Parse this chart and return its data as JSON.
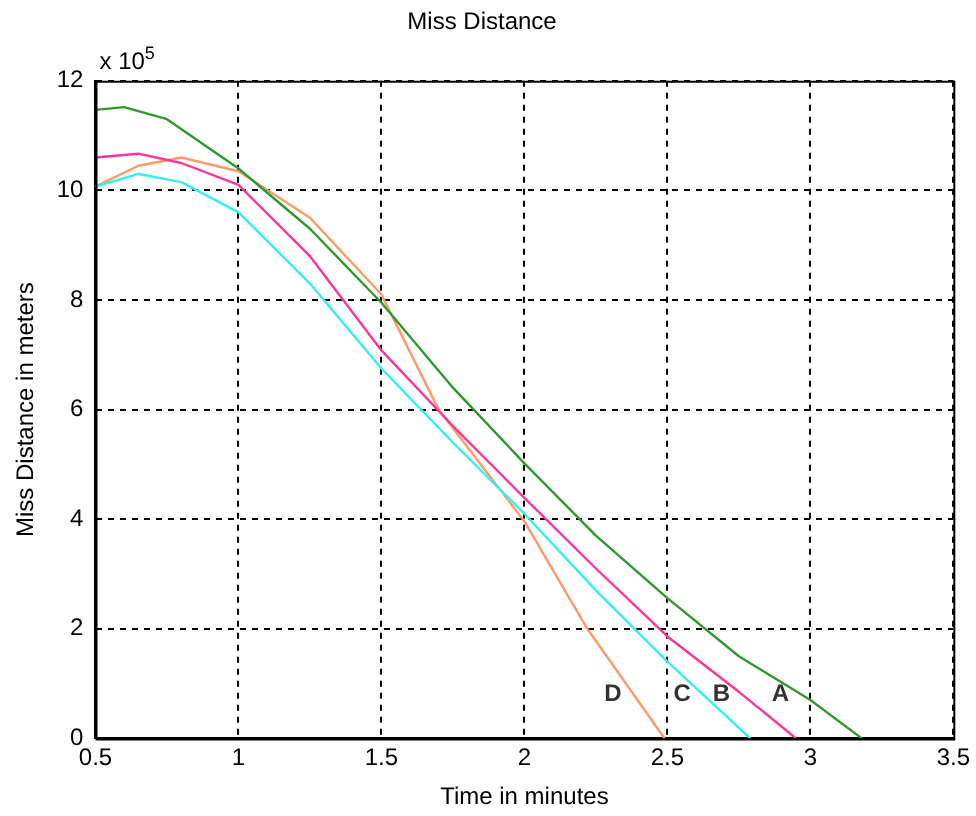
{
  "chart_data": {
    "type": "line",
    "title": "Miss Distance",
    "xlabel": "Time in minutes",
    "ylabel": "Miss Distance in meters",
    "xlim": [
      0.5,
      3.5
    ],
    "xticks": [
      0.5,
      1,
      1.5,
      2,
      2.5,
      3,
      3.5
    ],
    "ylim": [
      0,
      12
    ],
    "yticks": [
      0,
      2,
      4,
      6,
      8,
      10,
      12
    ],
    "grid": true,
    "line_style": "solid",
    "marker": "none",
    "series": [
      {
        "name": "A",
        "color": "#2e9a2e",
        "x": [
          0.5,
          0.6,
          0.75,
          1,
          1.25,
          1.5,
          1.75,
          2,
          2.25,
          2.5,
          2.75,
          3,
          3.18
        ],
        "values": [
          11.47,
          11.52,
          11.3,
          10.4,
          9.3,
          7.95,
          6.4,
          5.02,
          3.7,
          2.56,
          1.5,
          0.7,
          0
        ]
      },
      {
        "name": "B",
        "color": "#ff3399",
        "x": [
          0.5,
          0.65,
          0.8,
          1,
          1.25,
          1.5,
          1.75,
          2,
          2.25,
          2.5,
          2.75,
          2.95
        ],
        "values": [
          10.6,
          10.67,
          10.5,
          10.1,
          8.8,
          7.08,
          5.7,
          4.39,
          3.1,
          1.86,
          0.85,
          0
        ]
      },
      {
        "name": "C",
        "color": "#33f0f0",
        "x": [
          0.5,
          0.65,
          0.8,
          1,
          1.25,
          1.5,
          1.75,
          2,
          2.25,
          2.5,
          2.79
        ],
        "values": [
          10.07,
          10.3,
          10.15,
          9.6,
          8.3,
          6.75,
          5.4,
          4.1,
          2.7,
          1.4,
          0
        ]
      },
      {
        "name": "D",
        "color": "#ff9966",
        "x": [
          0.5,
          0.65,
          0.8,
          1,
          1.25,
          1.5,
          1.7,
          2,
          2.22,
          2.49
        ],
        "values": [
          10.07,
          10.45,
          10.6,
          10.35,
          9.5,
          8.1,
          6.0,
          3.96,
          2,
          0
        ]
      }
    ],
    "annotations": [
      "x 10$^{5}$"
    ]
  }
}
